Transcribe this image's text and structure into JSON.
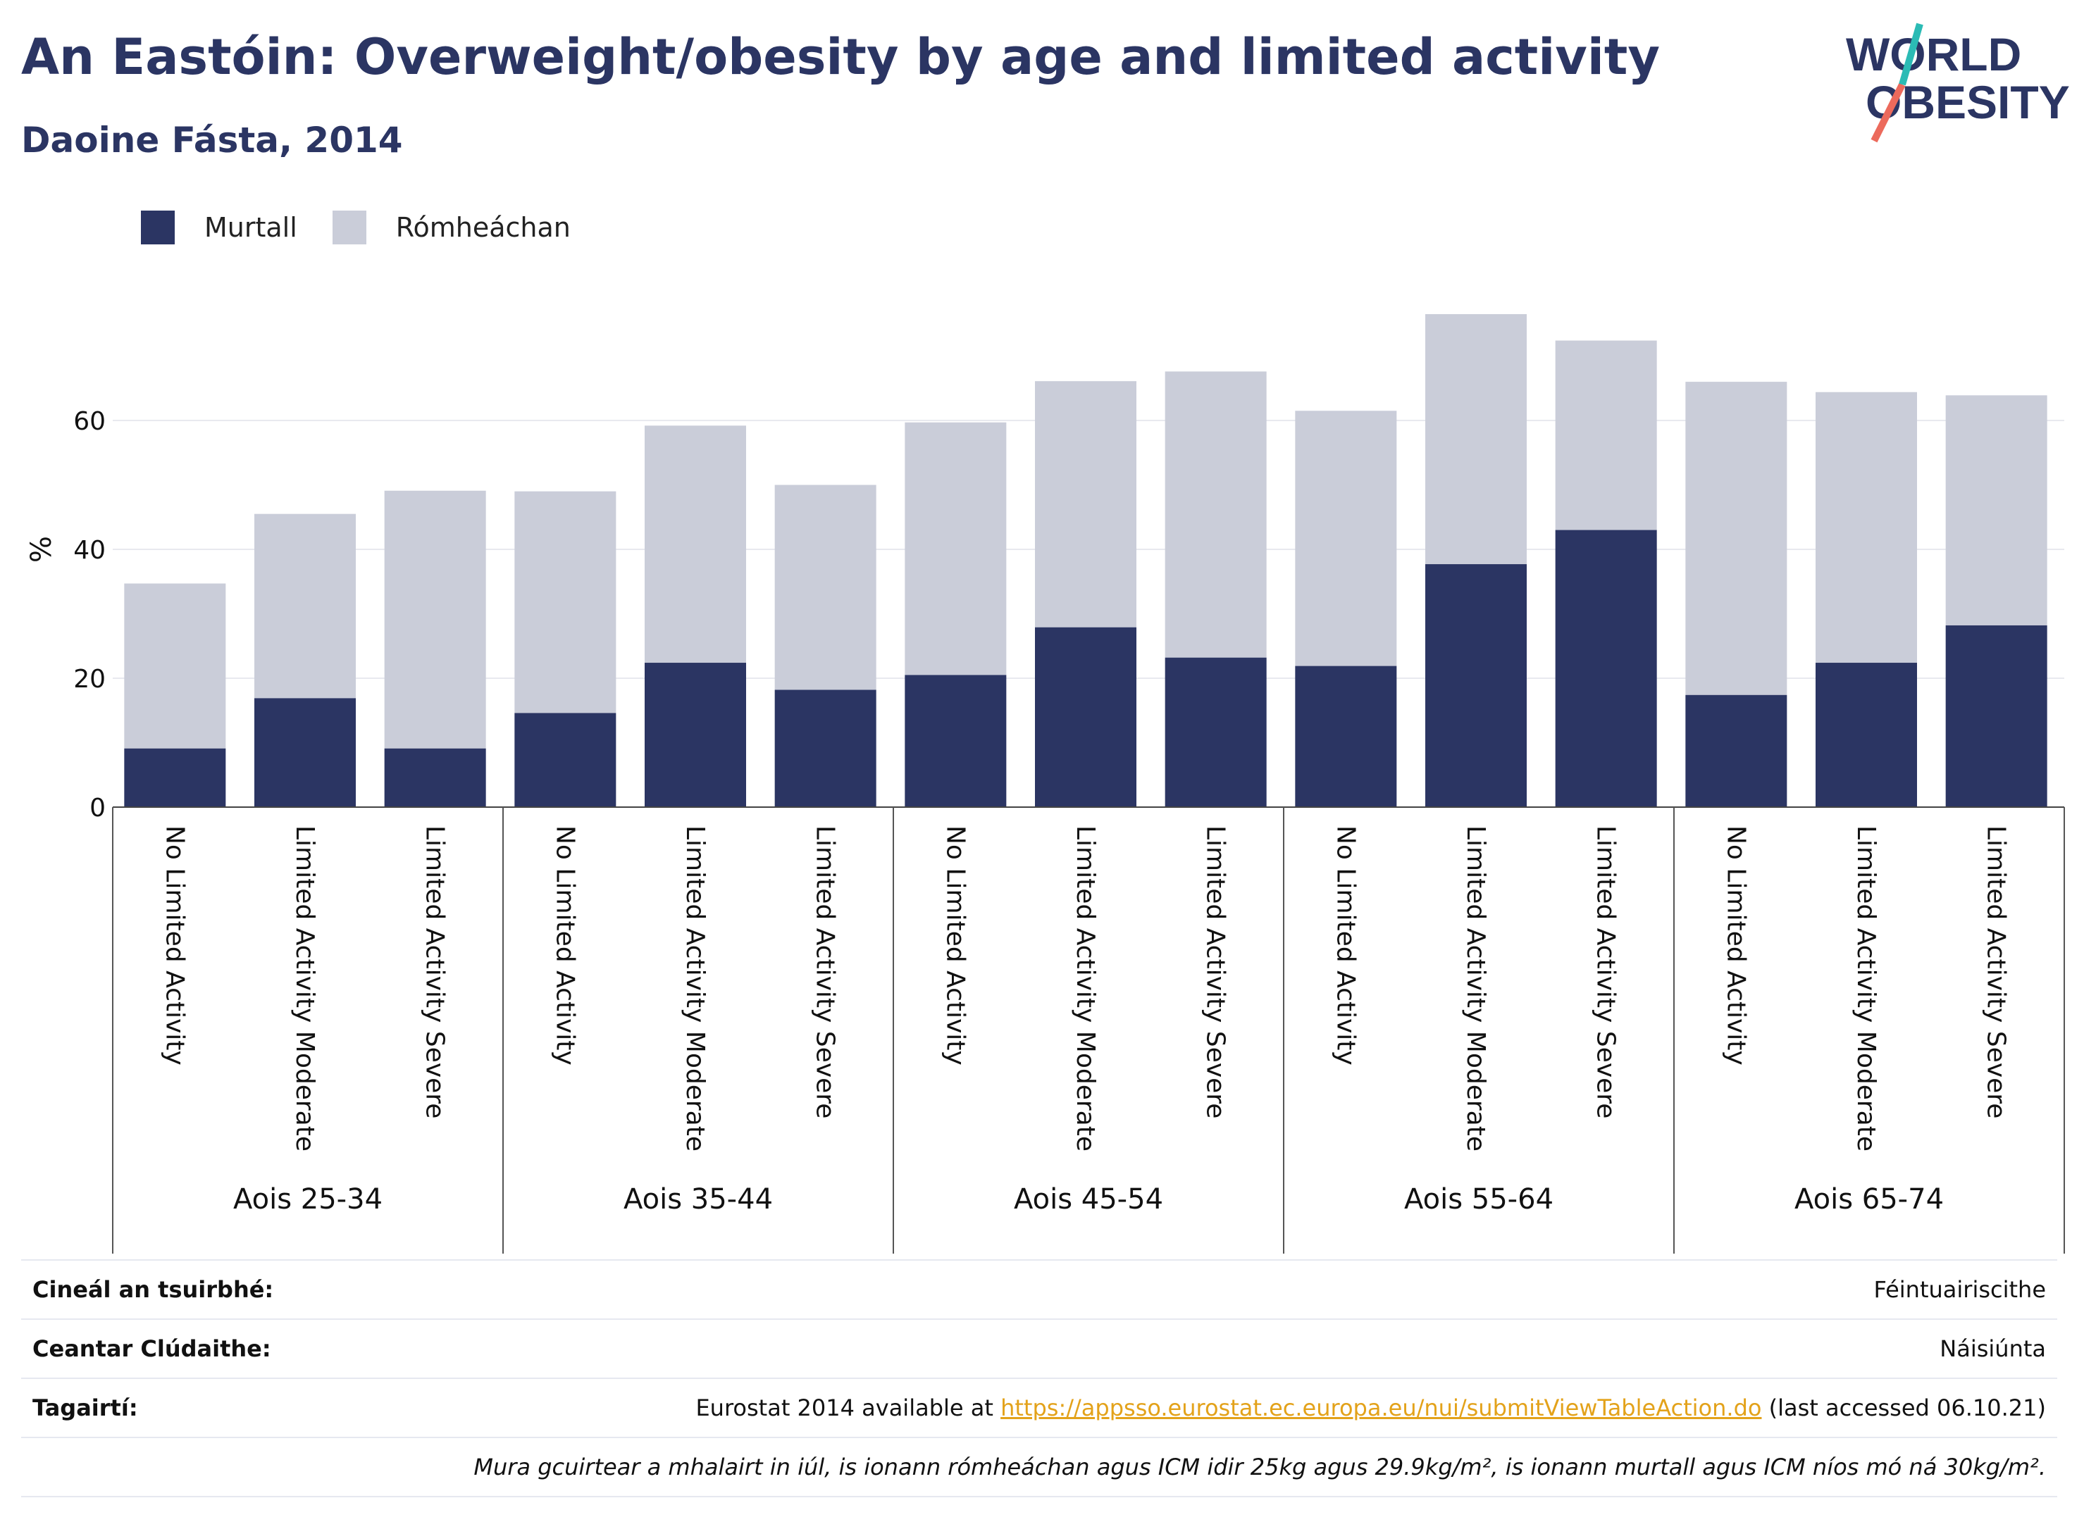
{
  "header": {
    "title": "An Eastóin: Overweight/obesity by age and limited activity",
    "subtitle": "Daoine Fásta, 2014"
  },
  "logo": {
    "line1": "WORLD",
    "line2": "OBESITY"
  },
  "colors": {
    "obese": "#2b3563",
    "overweight": "#cacdd9",
    "title": "#2b3563",
    "link": "#e3a21a",
    "logo_teal": "#2bbbb5",
    "logo_coral": "#ec6a5c"
  },
  "legend": {
    "obese_label": "Murtall",
    "overweight_label": "Rómheáchan"
  },
  "chart_data": {
    "type": "bar",
    "stacked": true,
    "ylabel": "%",
    "ylim": [
      0,
      80
    ],
    "yticks": [
      0,
      20,
      40,
      60
    ],
    "grid": true,
    "legend_position": "top-left",
    "groups": [
      "Aois 25-34",
      "Aois 35-44",
      "Aois 45-54",
      "Aois 55-64",
      "Aois 65-74"
    ],
    "subcategories": [
      "No Limited Activity",
      "Limited Activity Moderate",
      "Limited Activity Severe"
    ],
    "series": [
      {
        "name": "Murtall",
        "values": [
          9.1,
          16.9,
          9.1,
          14.6,
          22.4,
          18.2,
          20.5,
          27.9,
          23.2,
          21.9,
          37.7,
          43.0,
          17.4,
          22.4,
          28.2
        ]
      },
      {
        "name": "Rómheáchan",
        "values": [
          25.6,
          28.6,
          40.0,
          34.4,
          36.8,
          31.8,
          39.2,
          38.2,
          44.4,
          39.6,
          38.8,
          29.4,
          48.6,
          42.0,
          35.7
        ]
      }
    ]
  },
  "table": {
    "survey_type_label": "Cineál an tsuirbhé:",
    "survey_type_value": "Féintuairiscithe",
    "area_label": "Ceantar Clúdaithe:",
    "area_value": "Náisiúnta",
    "references_label": "Tagairtí:",
    "references_prefix": "Eurostat 2014 available at ",
    "references_link": "https://appsso.eurostat.ec.europa.eu/nui/submitViewTableAction.do",
    "references_suffix": " (last accessed 06.10.21)",
    "note": "Mura gcuirtear a mhalairt in iúl, is ionann rómheáchan agus ICM idir 25kg agus 29.9kg/m², is ionann murtall agus ICM níos mó ná 30kg/m²."
  }
}
